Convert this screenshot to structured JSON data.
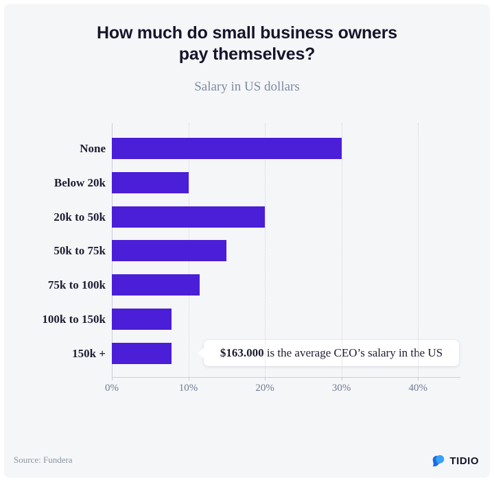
{
  "header": {
    "title_line1": "How much do small business owners",
    "title_line2": "pay themselves?",
    "subtitle": "Salary in US dollars"
  },
  "chart_data": {
    "type": "bar",
    "orientation": "horizontal",
    "title": "How much do small business owners pay themselves?",
    "subtitle": "Salary in US dollars",
    "categories": [
      "None",
      "Below 20k",
      "20k to 50k",
      "50k to 75k",
      "75k to 100k",
      "100k to 150k",
      "150k +"
    ],
    "values": [
      30,
      10,
      20,
      15,
      11.5,
      7.8,
      7.8
    ],
    "unit": "%",
    "xlabel": "",
    "ylabel": "",
    "x_ticks": [
      "0%",
      "10%",
      "20%",
      "30%",
      "40%"
    ],
    "x_tick_values": [
      0,
      10,
      20,
      30,
      40
    ],
    "xlim": [
      0,
      45
    ],
    "grid": "vertical-dotted",
    "legend": "none",
    "bar_color": "#4b1ed7",
    "annotation": {
      "bold": "$163.000",
      "text": " is the average CEO’s salary in the US",
      "attached_to": "150k +"
    }
  },
  "footer": {
    "source": "Source: Fundera",
    "brand": "TIDIO",
    "brand_icon": "chat-bubble-icon"
  },
  "colors": {
    "background": "#f5f6f8",
    "bar": "#4b1ed7",
    "title": "#15152b",
    "subtitle": "#7d8aa3",
    "axis": "#c9ced8",
    "tick_label": "#6e7b93",
    "brand_blue_light": "#38a1f3",
    "brand_blue_dark": "#1a6be0"
  }
}
